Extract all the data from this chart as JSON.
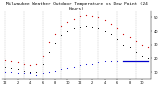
{
  "title": "Milwaukee Weather Outdoor Temperature vs Dew Point (24 Hours)",
  "hours": [
    0,
    1,
    2,
    3,
    4,
    5,
    6,
    7,
    8,
    9,
    10,
    11,
    12,
    13,
    14,
    15,
    16,
    17,
    18,
    19,
    20,
    21,
    22,
    23
  ],
  "temp": [
    19,
    18,
    17,
    16,
    15,
    16,
    22,
    32,
    38,
    44,
    47,
    49,
    51,
    52,
    51,
    50,
    48,
    45,
    42,
    38,
    36,
    33,
    30,
    28
  ],
  "dew": [
    10,
    10,
    9,
    9,
    9,
    8,
    9,
    10,
    11,
    12,
    13,
    14,
    15,
    16,
    16,
    17,
    18,
    18,
    18,
    18,
    18,
    18,
    18,
    18
  ],
  "apparent": [
    14,
    13,
    12,
    11,
    10,
    10,
    16,
    25,
    31,
    37,
    40,
    42,
    43,
    44,
    43,
    42,
    40,
    38,
    34,
    30,
    28,
    25,
    22,
    20
  ],
  "ylim_min": 5,
  "ylim_max": 55,
  "yticks": [
    10,
    20,
    30,
    40,
    50
  ],
  "ytick_labels": [
    "10",
    "20",
    "30",
    "40",
    "50"
  ],
  "grid_hours": [
    0,
    3,
    6,
    9,
    12,
    15,
    18,
    21
  ],
  "temp_color": "#cc0000",
  "dew_color": "#0000cc",
  "apparent_color": "#000000",
  "flat_dew_start": 19,
  "flat_dew_end": 23,
  "flat_dew_val": 18,
  "bg_color": "#ffffff",
  "title_fontsize": 3.2,
  "tick_fontsize": 2.5,
  "markersize_temp": 0.9,
  "markersize_dew": 0.8,
  "markersize_app": 0.7,
  "xtick_every": 2,
  "xlim_min": -0.5,
  "xlim_max": 23.5
}
